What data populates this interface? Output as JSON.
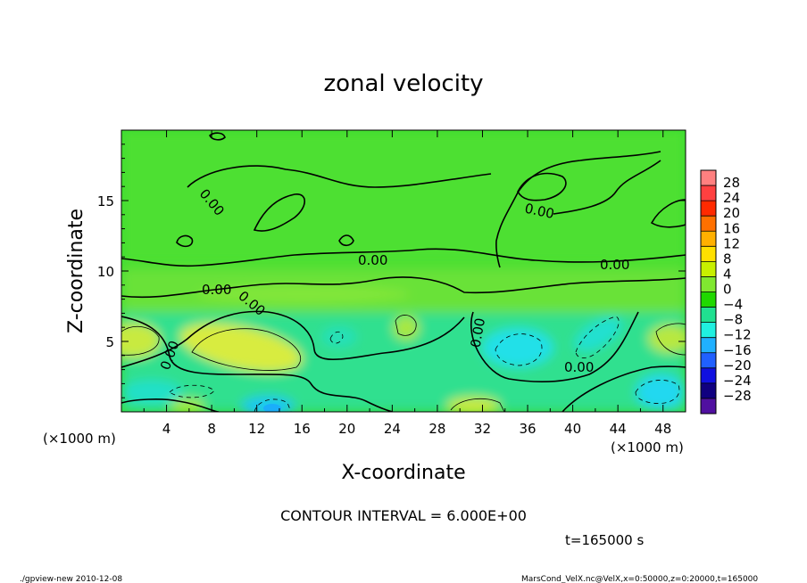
{
  "chart_data": {
    "type": "heatmap",
    "title": "zonal velocity",
    "xlabel": "X-coordinate",
    "ylabel": "Z-coordinate",
    "x_unit": "(×1000 m)",
    "y_unit": "(×1000 m)",
    "xlim": [
      0,
      50
    ],
    "ylim": [
      0,
      20
    ],
    "x_ticks": [
      "4",
      "8",
      "12",
      "16",
      "20",
      "24",
      "28",
      "32",
      "36",
      "40",
      "44",
      "48"
    ],
    "y_ticks": [
      "5",
      "10",
      "15"
    ],
    "colorbar": {
      "levels": [
        "28",
        "24",
        "20",
        "16",
        "12",
        "8",
        "4",
        "0",
        "−4",
        "−8",
        "−12",
        "−16",
        "−20",
        "−24",
        "−28"
      ],
      "colors": [
        "#ff8080",
        "#ff4040",
        "#ff2a00",
        "#ff7000",
        "#ffb000",
        "#ffe000",
        "#c8f000",
        "#80e830",
        "#20d800",
        "#20e090",
        "#20f0e0",
        "#20b0ff",
        "#2060ff",
        "#1010e0",
        "#100080",
        "#5010a0"
      ]
    },
    "contour_label": "0.00",
    "contour_interval_text": "CONTOUR INTERVAL = 6.000E+00",
    "time_text": "t=165000 s",
    "footer_left": "./gpview-new  2010-12-08",
    "footer_right": "MarsCond_VelX.nc@VelX,x=0:50000,z=0:20000,t=165000"
  }
}
